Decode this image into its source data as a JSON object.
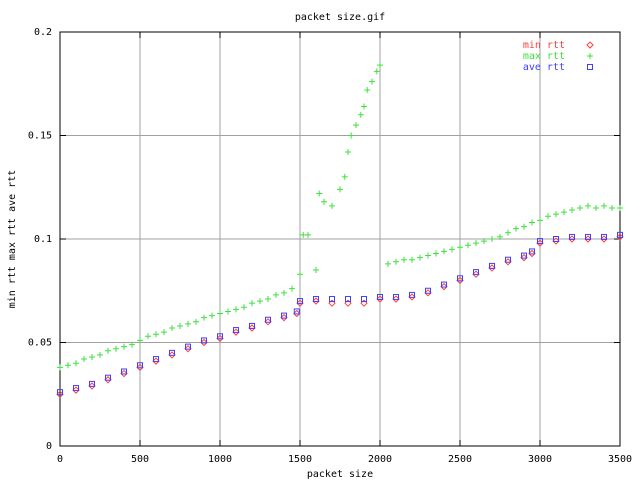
{
  "chart_data": {
    "type": "scatter",
    "title": "packet size.gif",
    "xlabel": "packet size",
    "ylabel": "min rtt max rtt ave rtt",
    "xlim": [
      0,
      3500
    ],
    "ylim": [
      0,
      0.2
    ],
    "x_ticks": [
      0,
      500,
      1000,
      1500,
      2000,
      2500,
      3000,
      3500
    ],
    "y_ticks": [
      0,
      0.05,
      0.1,
      0.15,
      0.2
    ],
    "x_tick_labels": [
      "0",
      "500",
      "1000",
      "1500",
      "2000",
      "2500",
      "3000",
      "3500"
    ],
    "y_tick_labels": [
      "0",
      "0.05",
      "0.1",
      "0.15",
      "0.2"
    ],
    "grid": true,
    "legend_position": "top-right",
    "series": [
      {
        "name": "min rtt",
        "marker": "diamond",
        "color": "#ff4040",
        "x": [
          0,
          100,
          200,
          300,
          400,
          500,
          600,
          700,
          800,
          900,
          1000,
          1100,
          1200,
          1300,
          1400,
          1480,
          1500,
          1600,
          1700,
          1800,
          1900,
          2000,
          2100,
          2200,
          2300,
          2400,
          2500,
          2600,
          2700,
          2800,
          2900,
          2950,
          3000,
          3100,
          3200,
          3300,
          3400,
          3500
        ],
        "y": [
          0.025,
          0.027,
          0.029,
          0.032,
          0.035,
          0.038,
          0.041,
          0.044,
          0.047,
          0.05,
          0.052,
          0.055,
          0.057,
          0.06,
          0.062,
          0.064,
          0.069,
          0.07,
          0.069,
          0.069,
          0.069,
          0.071,
          0.071,
          0.072,
          0.074,
          0.077,
          0.08,
          0.083,
          0.086,
          0.089,
          0.091,
          0.093,
          0.098,
          0.099,
          0.1,
          0.1,
          0.1,
          0.101
        ]
      },
      {
        "name": "max rtt",
        "marker": "plus",
        "color": "#40e040",
        "x": [
          0,
          50,
          100,
          150,
          200,
          250,
          300,
          350,
          400,
          450,
          500,
          550,
          600,
          650,
          700,
          750,
          800,
          850,
          900,
          950,
          1000,
          1050,
          1100,
          1150,
          1200,
          1250,
          1300,
          1350,
          1400,
          1450,
          1500,
          1520,
          1550,
          1600,
          1620,
          1650,
          1700,
          1750,
          1780,
          1800,
          1820,
          1850,
          1880,
          1900,
          1920,
          1950,
          1980,
          2000,
          2050,
          2100,
          2150,
          2200,
          2250,
          2300,
          2350,
          2400,
          2450,
          2500,
          2550,
          2600,
          2650,
          2700,
          2750,
          2800,
          2850,
          2900,
          2950,
          3000,
          3050,
          3100,
          3150,
          3200,
          3250,
          3300,
          3350,
          3400,
          3450,
          3500
        ],
        "y": [
          0.038,
          0.039,
          0.04,
          0.042,
          0.043,
          0.044,
          0.046,
          0.047,
          0.048,
          0.049,
          0.051,
          0.053,
          0.054,
          0.055,
          0.057,
          0.058,
          0.059,
          0.06,
          0.062,
          0.063,
          0.064,
          0.065,
          0.066,
          0.067,
          0.069,
          0.07,
          0.071,
          0.073,
          0.074,
          0.076,
          0.083,
          0.102,
          0.102,
          0.085,
          0.122,
          0.118,
          0.116,
          0.124,
          0.13,
          0.142,
          0.15,
          0.155,
          0.16,
          0.164,
          0.172,
          0.176,
          0.181,
          0.184,
          0.088,
          0.089,
          0.09,
          0.09,
          0.091,
          0.092,
          0.093,
          0.094,
          0.095,
          0.096,
          0.097,
          0.098,
          0.099,
          0.1,
          0.101,
          0.103,
          0.105,
          0.106,
          0.108,
          0.109,
          0.111,
          0.112,
          0.113,
          0.114,
          0.115,
          0.116,
          0.115,
          0.116,
          0.115,
          0.115
        ]
      },
      {
        "name": "ave rtt",
        "marker": "square",
        "color": "#4040ff",
        "x": [
          0,
          100,
          200,
          300,
          400,
          500,
          600,
          700,
          800,
          900,
          1000,
          1100,
          1200,
          1300,
          1400,
          1480,
          1500,
          1600,
          1700,
          1800,
          1900,
          2000,
          2100,
          2200,
          2300,
          2400,
          2500,
          2600,
          2700,
          2800,
          2900,
          2950,
          3000,
          3100,
          3200,
          3300,
          3400,
          3500
        ],
        "y": [
          0.026,
          0.028,
          0.03,
          0.033,
          0.036,
          0.039,
          0.042,
          0.045,
          0.048,
          0.051,
          0.053,
          0.056,
          0.058,
          0.061,
          0.063,
          0.065,
          0.07,
          0.071,
          0.071,
          0.071,
          0.071,
          0.072,
          0.072,
          0.073,
          0.075,
          0.078,
          0.081,
          0.084,
          0.087,
          0.09,
          0.092,
          0.094,
          0.099,
          0.1,
          0.101,
          0.101,
          0.101,
          0.102
        ]
      }
    ]
  }
}
